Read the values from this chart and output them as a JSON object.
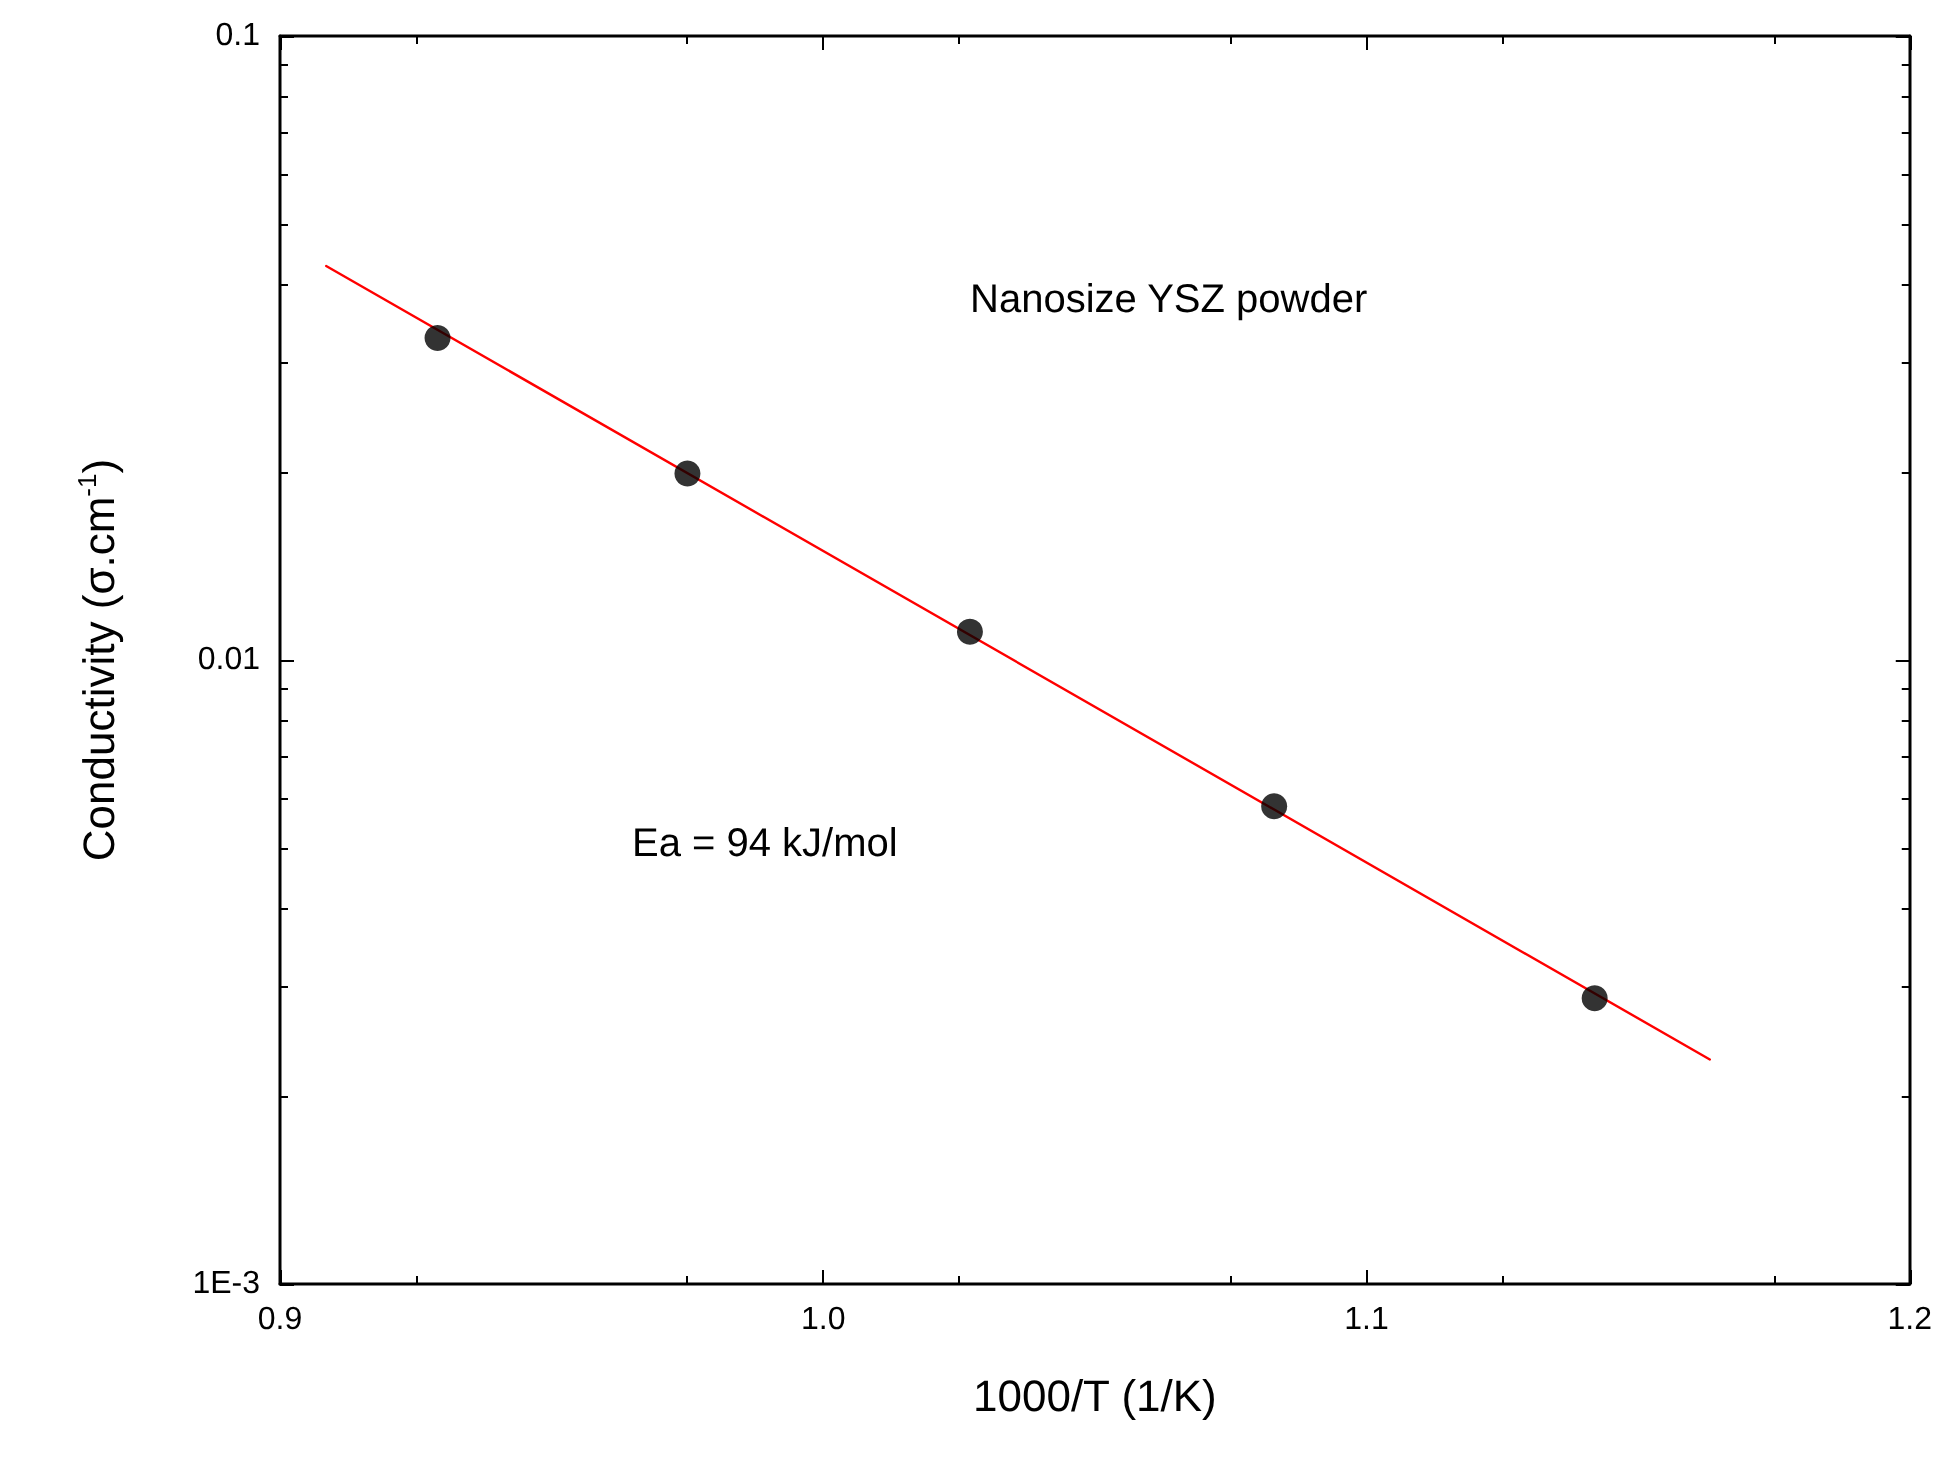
{
  "chart_data": {
    "type": "scatter",
    "xlabel": "1000/T (1/K)",
    "ylabel": "Conductivity (σ.cm$^{-1}$)",
    "log": "y",
    "xlim": [
      0.9,
      1.2
    ],
    "xticks": [
      0.9,
      {
        "value": 1.0,
        "label": "1.0"
      },
      1.1,
      1.2
    ],
    "ylim": [
      0.001,
      0.1
    ],
    "yticks": [
      {
        "value": 0.001,
        "label": "1E-3"
      },
      0.01,
      0.1
    ],
    "grid": false,
    "series": [
      {
        "type": "scatter",
        "color": "#000000",
        "marker": "circle",
        "x": [
          0.929,
          0.975,
          1.027,
          1.083,
          1.142
        ],
        "values": [
          0.0328,
          0.0199,
          0.0111,
          0.00583,
          0.00287
        ]
      },
      {
        "type": "line",
        "color": "#ff0000",
        "marker": "none",
        "line_style": "solid",
        "x": [
          0.9085,
          1.1632
        ],
        "values": [
          0.0428,
          0.00229
        ]
      }
    ],
    "annotations": [
      "Nanosize YSZ powder",
      "Ea = 94 kJ/mol"
    ]
  }
}
